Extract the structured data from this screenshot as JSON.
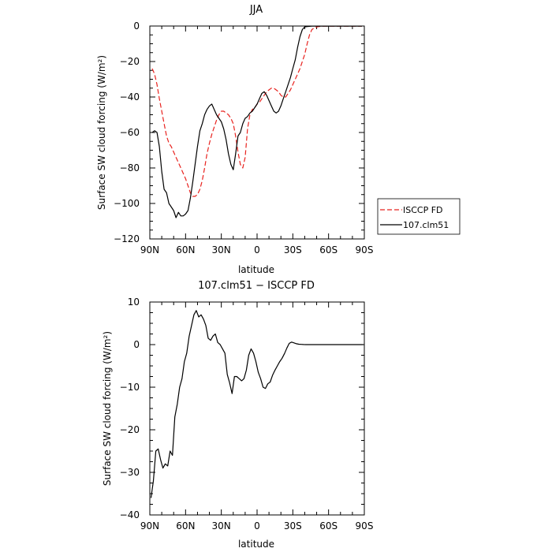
{
  "chart_data": [
    {
      "type": "line",
      "title": "JJA",
      "xlabel": "latitude",
      "ylabel": "Surface SW cloud forcing (W/m²)",
      "xlim": [
        90,
        -90
      ],
      "ylim": [
        -120,
        0
      ],
      "x_ticks": [
        90,
        60,
        30,
        0,
        -30,
        -60,
        -90
      ],
      "x_tick_labels": [
        "90N",
        "60N",
        "30N",
        "0",
        "30S",
        "60S",
        "90S"
      ],
      "y_ticks": [
        -120,
        -100,
        -80,
        -60,
        -40,
        -20,
        0
      ],
      "y_tick_labels": [
        "−120",
        "−100",
        "−80",
        "−60",
        "−40",
        "−20",
        "0"
      ],
      "legend_position": "outside-right",
      "series": [
        {
          "name": "ISCCP FD",
          "color": "#e8231f",
          "style": "dashed",
          "x": [
            88,
            86,
            84,
            82,
            80,
            78,
            76,
            74,
            72,
            70,
            68,
            66,
            64,
            62,
            60,
            58,
            56,
            54,
            52,
            50,
            48,
            46,
            44,
            42,
            40,
            38,
            36,
            34,
            32,
            30,
            28,
            26,
            24,
            22,
            20,
            18,
            16,
            14,
            12,
            10,
            8,
            6,
            4,
            2,
            0,
            -2,
            -4,
            -6,
            -8,
            -10,
            -12,
            -14,
            -16,
            -18,
            -20,
            -22,
            -24,
            -26,
            -28,
            -30,
            -32,
            -34,
            -36,
            -38,
            -40,
            -42,
            -44,
            -46,
            -48,
            -50,
            -52,
            -54,
            -56,
            -58,
            -60,
            -62,
            -64,
            -66,
            -68,
            -70,
            -72,
            -74,
            -76,
            -78,
            -80,
            -82,
            -84,
            -86,
            -88
          ],
          "values": [
            -24,
            -27,
            -33,
            -41,
            -48,
            -55,
            -62,
            -66,
            -68,
            -71,
            -74,
            -77,
            -80,
            -83,
            -86,
            -90,
            -94,
            -96,
            -96,
            -95,
            -92,
            -87,
            -80,
            -72,
            -66,
            -61,
            -57,
            -53,
            -50,
            -48,
            -48,
            -49,
            -50,
            -52,
            -55,
            -62,
            -71,
            -78,
            -80,
            -74,
            -58,
            -50,
            -47,
            -46,
            -44,
            -43,
            -41,
            -39,
            -37,
            -36,
            -35,
            -35,
            -36,
            -37,
            -39,
            -40,
            -40,
            -38,
            -36,
            -33,
            -30,
            -27,
            -24,
            -20,
            -16,
            -10,
            -5,
            -2,
            -1,
            -0.5,
            -0.3,
            -0.2,
            -0.1,
            -0.1,
            -0.1,
            -0.1,
            -0.1,
            -0.1,
            -0.1,
            -0.1,
            -0.1,
            -0.1,
            -0.1,
            -0.1,
            -0.1,
            -0.1,
            -0.1,
            -0.1,
            -0.1
          ]
        },
        {
          "name": "107.clm51",
          "color": "#000000",
          "style": "solid",
          "x": [
            88,
            86,
            84,
            82,
            80,
            78,
            76,
            74,
            72,
            70,
            68,
            66,
            64,
            62,
            60,
            58,
            56,
            54,
            52,
            50,
            48,
            46,
            44,
            42,
            40,
            38,
            36,
            34,
            32,
            30,
            28,
            26,
            24,
            22,
            20,
            18,
            16,
            14,
            12,
            10,
            8,
            6,
            4,
            2,
            0,
            -2,
            -4,
            -6,
            -8,
            -10,
            -12,
            -14,
            -16,
            -18,
            -20,
            -22,
            -24,
            -26,
            -28,
            -30,
            -32,
            -34,
            -36,
            -38,
            -40,
            -42,
            -44,
            -46,
            -48,
            -50,
            -52,
            -54,
            -56,
            -58,
            -60,
            -62,
            -64,
            -66,
            -68,
            -70,
            -72,
            -74,
            -76,
            -78,
            -80,
            -82,
            -84,
            -86,
            -88
          ],
          "values": [
            -60,
            -59,
            -60,
            -68,
            -82,
            -92,
            -94,
            -100,
            -102,
            -104,
            -108,
            -105,
            -107,
            -107,
            -106,
            -104,
            -97,
            -88,
            -78,
            -68,
            -59,
            -55,
            -50,
            -47,
            -45,
            -44,
            -47,
            -50,
            -52,
            -54,
            -58,
            -64,
            -72,
            -78,
            -81,
            -72,
            -62,
            -60,
            -55,
            -52,
            -51,
            -49,
            -48,
            -46,
            -44,
            -41,
            -38,
            -37,
            -39,
            -42,
            -45,
            -48,
            -49,
            -48,
            -45,
            -41,
            -37,
            -33,
            -29,
            -24,
            -19,
            -12,
            -6,
            -2,
            -0.5,
            -0.3,
            -0.2,
            -0.1,
            -0.1,
            -0.1,
            -0.1,
            -0.1,
            -0.1,
            -0.1,
            -0.1,
            -0.1,
            -0.1,
            -0.1,
            -0.1,
            -0.1,
            -0.1,
            -0.1,
            -0.1,
            -0.1,
            -0.1,
            -0.1,
            -0.1,
            -0.1,
            -0.1
          ]
        }
      ]
    },
    {
      "type": "line",
      "title": "107.clm51 − ISCCP FD",
      "xlabel": "latitude",
      "ylabel": "Surface SW cloud forcing (W/m²)",
      "xlim": [
        90,
        -90
      ],
      "ylim": [
        -40,
        10
      ],
      "x_ticks": [
        90,
        60,
        30,
        0,
        -30,
        -60,
        -90
      ],
      "x_tick_labels": [
        "90N",
        "60N",
        "30N",
        "0",
        "30S",
        "60S",
        "90S"
      ],
      "y_ticks": [
        -40,
        -30,
        -20,
        -10,
        0,
        10
      ],
      "y_tick_labels": [
        "−40",
        "−30",
        "−20",
        "−10",
        "0",
        "10"
      ],
      "series": [
        {
          "name": "",
          "color": "#000000",
          "style": "solid",
          "x": [
            89,
            87,
            85,
            83,
            81,
            79,
            77,
            75,
            73,
            71,
            69,
            67,
            65,
            63,
            61,
            59,
            57,
            55,
            53,
            51,
            49,
            47,
            45,
            43,
            41,
            39,
            37,
            35,
            33,
            31,
            29,
            27,
            25,
            23,
            21,
            19,
            17,
            15,
            13,
            11,
            9,
            7,
            5,
            3,
            1,
            -1,
            -3,
            -5,
            -7,
            -9,
            -11,
            -13,
            -15,
            -17,
            -19,
            -21,
            -23,
            -25,
            -27,
            -29,
            -31,
            -33,
            -35,
            -37,
            -39,
            -41,
            -43,
            -45,
            -47,
            -49,
            -51,
            -53,
            -55,
            -57,
            -59,
            -61,
            -63,
            -65,
            -67,
            -69,
            -71,
            -73,
            -75,
            -77,
            -79,
            -81,
            -83,
            -85,
            -87,
            -89
          ],
          "values": [
            -36,
            -32,
            -25,
            -24.5,
            -27,
            -29,
            -28,
            -28.5,
            -25,
            -26,
            -17,
            -14,
            -10,
            -8,
            -4,
            -2,
            2,
            4.5,
            7,
            8,
            6.5,
            7,
            6,
            4.5,
            1.5,
            1,
            2,
            2.5,
            0.5,
            0,
            -1,
            -2,
            -7,
            -9,
            -11.5,
            -7.5,
            -7.5,
            -8,
            -8.5,
            -8,
            -6,
            -2.5,
            -1,
            -2,
            -4,
            -6.5,
            -8,
            -10,
            -10.3,
            -9.2,
            -8.8,
            -7.2,
            -6,
            -5,
            -4,
            -3.2,
            -2.1,
            -0.8,
            0.3,
            0.6,
            0.4,
            0.2,
            0.1,
            0.05,
            0.02,
            0,
            0,
            0,
            0,
            0,
            0,
            0,
            0,
            0,
            0,
            0,
            0,
            0,
            0,
            0,
            0,
            0,
            0,
            0,
            0,
            0,
            0,
            0,
            0,
            0
          ]
        }
      ]
    }
  ]
}
